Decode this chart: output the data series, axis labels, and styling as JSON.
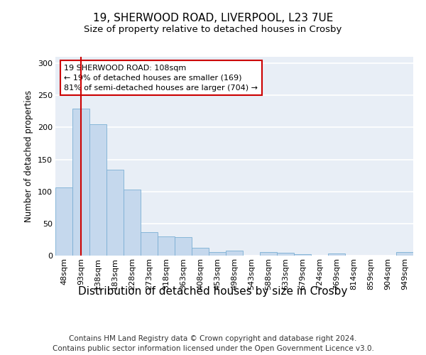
{
  "title_line1": "19, SHERWOOD ROAD, LIVERPOOL, L23 7UE",
  "title_line2": "Size of property relative to detached houses in Crosby",
  "xlabel": "Distribution of detached houses by size in Crosby",
  "ylabel": "Number of detached properties",
  "categories": [
    "48sqm",
    "93sqm",
    "138sqm",
    "183sqm",
    "228sqm",
    "273sqm",
    "318sqm",
    "363sqm",
    "408sqm",
    "453sqm",
    "498sqm",
    "543sqm",
    "588sqm",
    "633sqm",
    "679sqm",
    "724sqm",
    "769sqm",
    "814sqm",
    "859sqm",
    "904sqm",
    "949sqm"
  ],
  "values": [
    106,
    229,
    205,
    134,
    103,
    36,
    30,
    29,
    12,
    5,
    8,
    0,
    5,
    4,
    2,
    0,
    3,
    0,
    0,
    0,
    5
  ],
  "bar_color": "#c5d8ed",
  "bar_edge_color": "#7bafd4",
  "background_color": "#e8eef6",
  "grid_color": "#ffffff",
  "annotation_box_text": "19 SHERWOOD ROAD: 108sqm\n← 19% of detached houses are smaller (169)\n81% of semi-detached houses are larger (704) →",
  "annotation_box_color": "#cc0000",
  "property_line_x": 1.0,
  "ylim": [
    0,
    310
  ],
  "yticks": [
    0,
    50,
    100,
    150,
    200,
    250,
    300
  ],
  "footer_text": "Contains HM Land Registry data © Crown copyright and database right 2024.\nContains public sector information licensed under the Open Government Licence v3.0.",
  "title_fontsize": 11,
  "subtitle_fontsize": 9.5,
  "xlabel_fontsize": 11,
  "ylabel_fontsize": 8.5,
  "tick_fontsize": 8,
  "annotation_fontsize": 8,
  "footer_fontsize": 7.5
}
